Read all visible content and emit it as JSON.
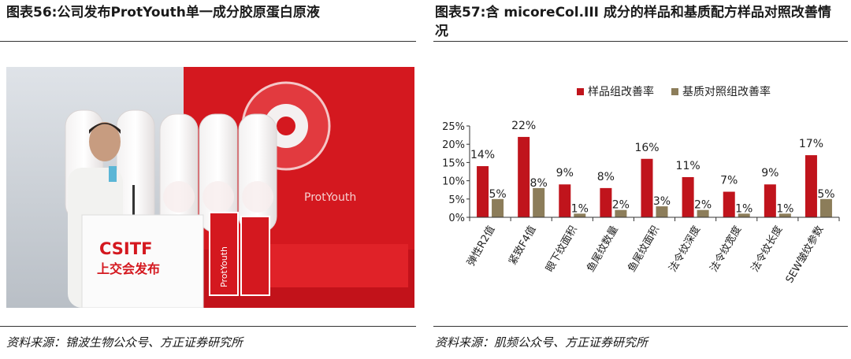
{
  "left": {
    "title": "图表56:公司发布ProtYouth单一成分胶原蛋白原液",
    "source": "资料来源：锦波生物公众号、方正证券研究所",
    "photo": {
      "podium_logo": "CSITF",
      "podium_text": "上交会发布",
      "box_brand": "ProtYouth",
      "label_brand": "ProtYouth"
    }
  },
  "right": {
    "title": "图表57:含 micoreCol.III 成分的样品和基质配方样品对照改善情况",
    "source": "资料来源：肌频公众号、方正证券研究所"
  },
  "chart_data": {
    "type": "bar",
    "categories": [
      "弹性R2值",
      "紧致F4值",
      "眼下纹面积",
      "鱼尾纹数量",
      "鱼尾纹面积",
      "法令纹深度",
      "法令纹宽度",
      "法令纹长度",
      "SEW皱纹参数"
    ],
    "series": [
      {
        "name": "样品组改善率",
        "color": "#c0141c",
        "values": [
          14,
          22,
          9,
          8,
          16,
          11,
          7,
          9,
          17
        ]
      },
      {
        "name": "基质对照组改善率",
        "color": "#8c7d5a",
        "values": [
          5,
          8,
          1,
          2,
          3,
          2,
          1,
          1,
          5
        ]
      }
    ],
    "data_labels": [
      [
        "14%",
        "22%",
        "9%",
        "8%",
        "16%",
        "11%",
        "7%",
        "9%",
        "17%"
      ],
      [
        "5%",
        "8%",
        "1%",
        "2%",
        "3%",
        "2%",
        "1%",
        "1%",
        "5%"
      ]
    ],
    "yticks": [
      "0%",
      "5%",
      "10%",
      "15%",
      "20%",
      "25%"
    ],
    "ylim": [
      0,
      25
    ],
    "legend_position": "top"
  }
}
